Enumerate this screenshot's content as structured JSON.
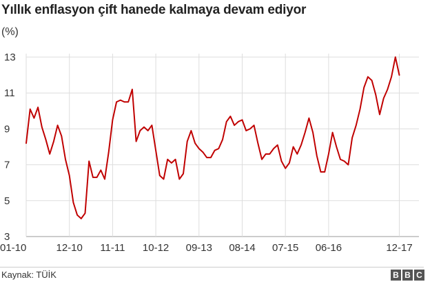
{
  "chart_data": {
    "type": "line",
    "title": "Yıllık enflasyon çift hanede kalmaya devam ediyor",
    "ylabel": "(%)",
    "xlabel": "",
    "ylim": [
      3,
      13
    ],
    "y_ticks": [
      3,
      5,
      7,
      9,
      11,
      13
    ],
    "x_tick_labels": [
      {
        "label": "01-10",
        "x": 0
      },
      {
        "label": "12-10",
        "x": 11
      },
      {
        "label": "11-11",
        "x": 22
      },
      {
        "label": "10-12",
        "x": 33
      },
      {
        "label": "09-13",
        "x": 44
      },
      {
        "label": "08-14",
        "x": 55
      },
      {
        "label": "07-15",
        "x": 66
      },
      {
        "label": "06-16",
        "x": 77
      },
      {
        "label": "12-17",
        "x": 95
      }
    ],
    "grid": true,
    "series": [
      {
        "color": "#c00000",
        "values": [
          8.2,
          10.1,
          9.6,
          10.2,
          9.1,
          8.4,
          7.6,
          8.3,
          9.2,
          8.6,
          7.3,
          6.4,
          4.9,
          4.2,
          4.0,
          4.3,
          7.2,
          6.3,
          6.3,
          6.7,
          6.2,
          7.7,
          9.5,
          10.5,
          10.6,
          10.5,
          10.5,
          11.2,
          8.3,
          8.9,
          9.1,
          8.9,
          9.2,
          7.8,
          6.4,
          6.2,
          7.3,
          7.1,
          7.3,
          6.2,
          6.5,
          8.3,
          8.9,
          8.2,
          7.9,
          7.7,
          7.4,
          7.4,
          7.8,
          7.9,
          8.4,
          9.4,
          9.7,
          9.2,
          9.4,
          9.5,
          8.9,
          9.0,
          9.2,
          8.2,
          7.3,
          7.6,
          7.6,
          7.9,
          8.1,
          7.2,
          6.8,
          7.1,
          8.0,
          7.6,
          8.1,
          8.8,
          9.6,
          8.8,
          7.5,
          6.6,
          6.6,
          7.6,
          8.8,
          8.0,
          7.3,
          7.2,
          7.0,
          8.5,
          9.2,
          10.1,
          11.3,
          11.9,
          11.7,
          10.9,
          9.8,
          10.7,
          11.2,
          11.9,
          13.0,
          12.0
        ]
      }
    ]
  },
  "footer": {
    "source": "Kaynak: TÜİK",
    "logo_letters": [
      "B",
      "B",
      "C"
    ]
  }
}
